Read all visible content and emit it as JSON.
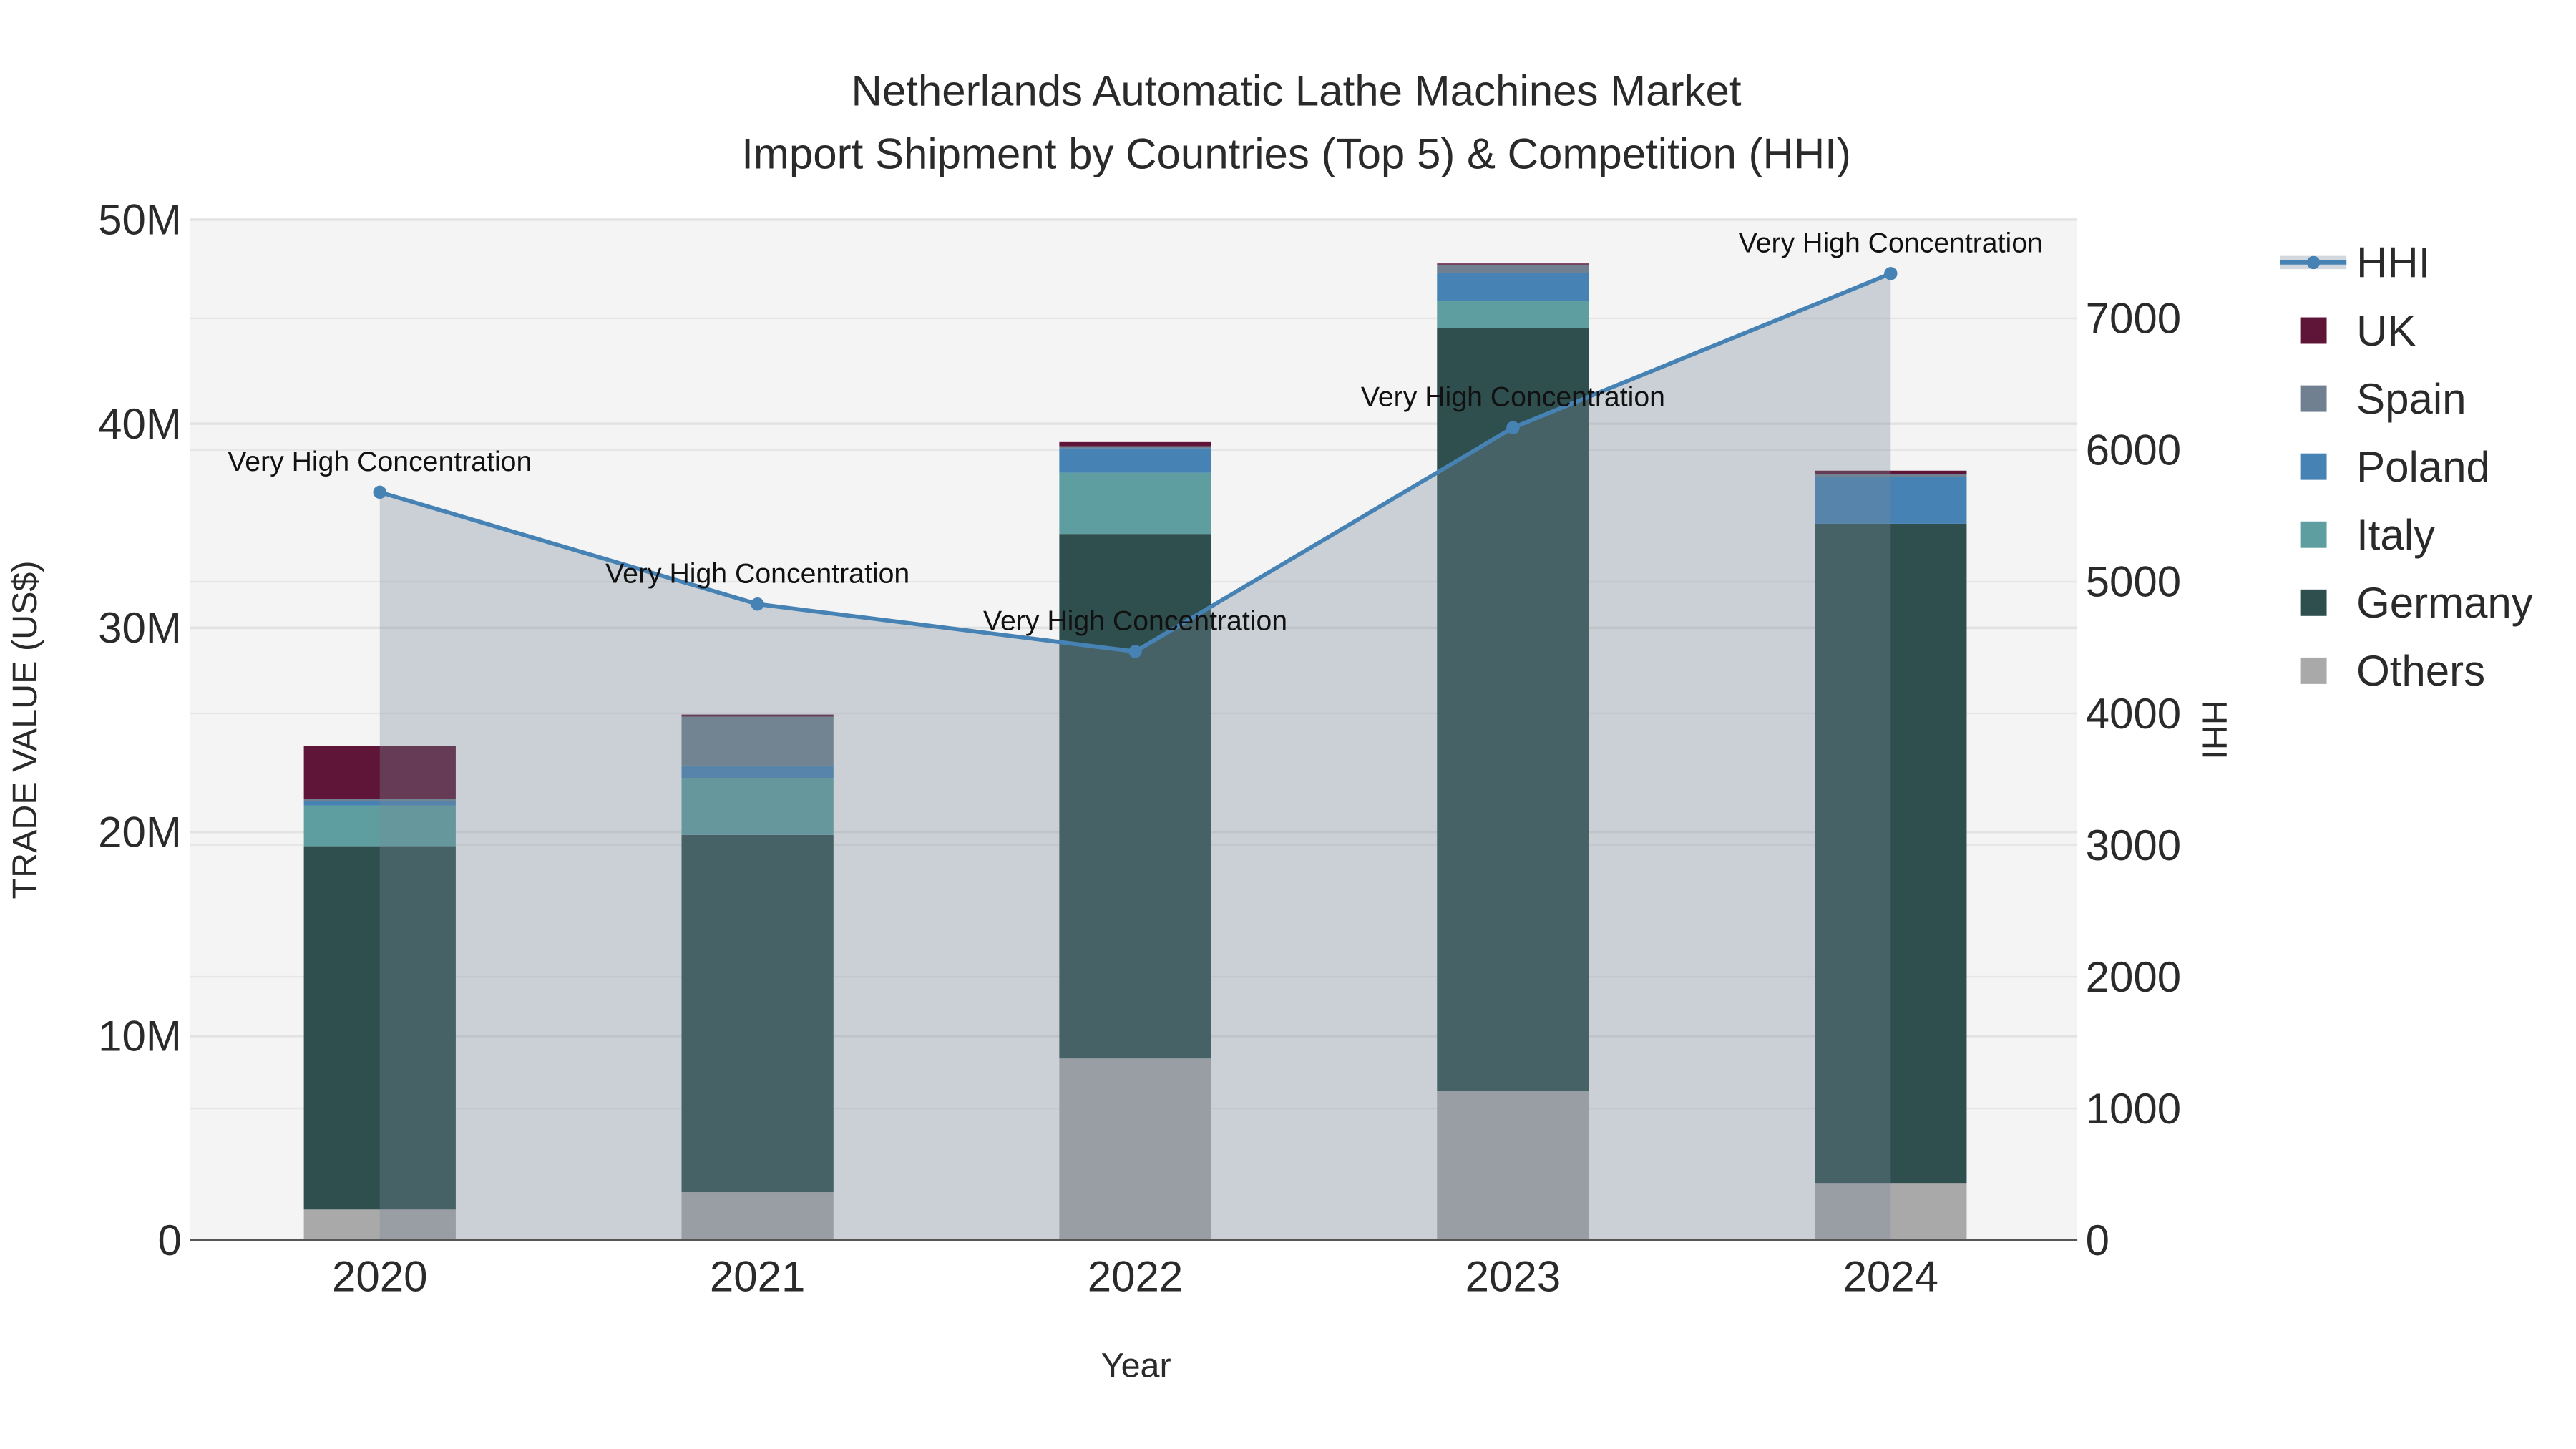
{
  "chart_data": {
    "type": "bar",
    "title": "Netherlands Automatic Lathe Machines Market",
    "subtitle": "Import Shipment by Countries (Top 5) & Competition (HHI)",
    "xlabel": "Year",
    "ylabel": "TRADE VALUE (US$)",
    "y2label": "HHI",
    "categories": [
      "2020",
      "2021",
      "2022",
      "2023",
      "2024"
    ],
    "ylim": [
      0,
      50000000
    ],
    "y2lim": [
      0,
      7750
    ],
    "yticks": [
      0,
      10000000,
      20000000,
      30000000,
      40000000,
      50000000
    ],
    "ytick_labels": [
      "0",
      "10M",
      "20M",
      "30M",
      "40M",
      "50M"
    ],
    "y2ticks": [
      0,
      1000,
      2000,
      3000,
      4000,
      5000,
      6000,
      7000
    ],
    "y2tick_labels": [
      "0",
      "1000",
      "2000",
      "3000",
      "4000",
      "5000",
      "6000",
      "7000"
    ],
    "stacked": true,
    "grid": true,
    "legend_position": "right",
    "series": [
      {
        "name": "Others",
        "color": "#a9a9a9",
        "values": [
          1500000,
          2350000,
          8900000,
          7300000,
          2800000
        ]
      },
      {
        "name": "Germany",
        "color": "#2f4f4f",
        "values": [
          17800000,
          17500000,
          25700000,
          37400000,
          32300000
        ]
      },
      {
        "name": "Italy",
        "color": "#5f9ea0",
        "values": [
          2000000,
          2800000,
          3000000,
          1300000,
          0
        ]
      },
      {
        "name": "Poland",
        "color": "#4682b4",
        "values": [
          200000,
          600000,
          1200000,
          1400000,
          2300000
        ]
      },
      {
        "name": "Spain",
        "color": "#708090",
        "values": [
          100000,
          2400000,
          100000,
          400000,
          150000
        ]
      },
      {
        "name": "UK",
        "color": "#5f1537",
        "values": [
          2600000,
          100000,
          200000,
          50000,
          150000
        ]
      }
    ],
    "hhi": {
      "name": "HHI",
      "color": "#4682b4",
      "values": [
        5680,
        4830,
        4470,
        6170,
        7340
      ],
      "annotations": [
        "Very High Concentration",
        "Very High Concentration",
        "Very High Concentration",
        "Very High Concentration",
        "Very High Concentration"
      ]
    }
  }
}
